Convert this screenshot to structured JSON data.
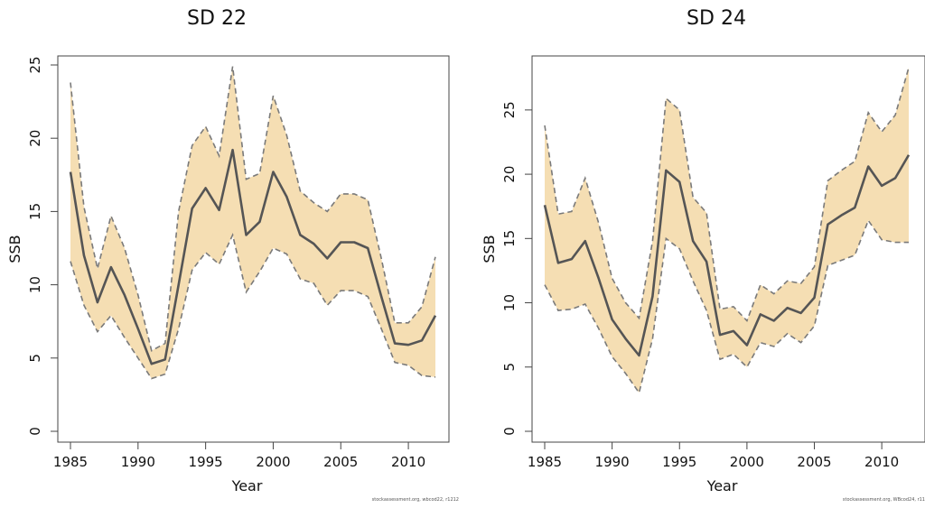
{
  "chart_data": [
    {
      "type": "line",
      "title": "SD 22",
      "xlabel": "Year",
      "ylabel": "SSB",
      "xlim": [
        1985,
        2012
      ],
      "ylim": [
        0,
        25
      ],
      "xticks": [
        "1985",
        "1990",
        "1995",
        "2000",
        "2005",
        "2010"
      ],
      "yticks": [
        "0",
        "5",
        "10",
        "15",
        "20",
        "25"
      ],
      "credit": "stockassessment.org, wbcod22, r1212",
      "colors": {
        "band": "#f5deb3",
        "line": "#555555",
        "bounds": "#7a7a7a"
      },
      "x": [
        1985,
        1986,
        1987,
        1988,
        1989,
        1990,
        1991,
        1992,
        1993,
        1994,
        1995,
        1996,
        1997,
        1998,
        1999,
        2000,
        2001,
        2002,
        2003,
        2004,
        2005,
        2006,
        2007,
        2008,
        2009,
        2010,
        2011,
        2012
      ],
      "series": [
        {
          "name": "",
          "role": "estimate",
          "values": [
            17.7,
            12.0,
            8.8,
            11.2,
            9.3,
            7.0,
            4.6,
            4.9,
            10.0,
            15.2,
            16.6,
            15.1,
            19.2,
            13.4,
            14.3,
            17.7,
            16.0,
            13.4,
            12.8,
            11.8,
            12.9,
            12.9,
            12.5,
            9.2,
            6.0,
            5.9,
            6.2,
            7.9
          ]
        },
        {
          "name": "",
          "role": "upper",
          "values": [
            23.8,
            15.3,
            11.1,
            14.7,
            12.5,
            9.3,
            5.5,
            6.0,
            15.0,
            19.5,
            20.8,
            18.8,
            24.9,
            17.2,
            17.6,
            22.9,
            20.2,
            16.4,
            15.6,
            15.0,
            16.2,
            16.2,
            15.8,
            11.8,
            7.4,
            7.4,
            8.5,
            11.9
          ]
        },
        {
          "name": "",
          "role": "lower",
          "values": [
            11.6,
            8.6,
            6.8,
            7.9,
            6.4,
            5.0,
            3.6,
            3.9,
            7.0,
            11.0,
            12.2,
            11.4,
            13.4,
            9.5,
            10.9,
            12.5,
            12.1,
            10.4,
            10.1,
            8.6,
            9.6,
            9.6,
            9.2,
            7.0,
            4.7,
            4.5,
            3.8,
            3.7
          ]
        }
      ]
    },
    {
      "type": "line",
      "title": "SD 24",
      "xlabel": "Year",
      "ylabel": "SSB",
      "xlim": [
        1985,
        2012
      ],
      "ylim": [
        0,
        28.5
      ],
      "xticks": [
        "1985",
        "1990",
        "1995",
        "2000",
        "2005",
        "2010"
      ],
      "yticks": [
        "0",
        "5",
        "10",
        "15",
        "20",
        "25"
      ],
      "credit": "stockassessment.org, WBcod24, r11",
      "colors": {
        "band": "#f5deb3",
        "line": "#555555",
        "bounds": "#7a7a7a"
      },
      "x": [
        1985,
        1986,
        1987,
        1988,
        1989,
        1990,
        1991,
        1992,
        1993,
        1994,
        1995,
        1996,
        1997,
        1998,
        1999,
        2000,
        2001,
        2002,
        2003,
        2004,
        2005,
        2006,
        2007,
        2008,
        2009,
        2010,
        2011,
        2012
      ],
      "series": [
        {
          "name": "",
          "role": "estimate",
          "values": [
            17.6,
            13.1,
            13.4,
            14.8,
            11.9,
            8.7,
            7.2,
            5.9,
            10.5,
            20.3,
            19.4,
            14.8,
            13.2,
            7.5,
            7.8,
            6.7,
            9.1,
            8.6,
            9.6,
            9.2,
            10.4,
            16.1,
            16.8,
            17.4,
            20.6,
            19.1,
            19.7,
            21.5
          ]
        },
        {
          "name": "",
          "role": "upper",
          "values": [
            23.8,
            16.9,
            17.1,
            19.7,
            16.2,
            11.9,
            10.0,
            8.8,
            14.8,
            25.9,
            25.0,
            18.2,
            17.0,
            9.5,
            9.7,
            8.6,
            11.4,
            10.7,
            11.7,
            11.5,
            12.8,
            19.5,
            20.3,
            21.0,
            24.8,
            23.3,
            24.6,
            28.3
          ]
        },
        {
          "name": "",
          "role": "lower",
          "values": [
            11.4,
            9.4,
            9.5,
            9.9,
            8.0,
            5.8,
            4.5,
            3.0,
            7.2,
            15.0,
            14.2,
            11.7,
            9.4,
            5.6,
            6.0,
            5.0,
            6.9,
            6.6,
            7.6,
            6.9,
            8.2,
            12.9,
            13.3,
            13.7,
            16.4,
            14.9,
            14.7,
            14.7
          ]
        }
      ]
    }
  ]
}
